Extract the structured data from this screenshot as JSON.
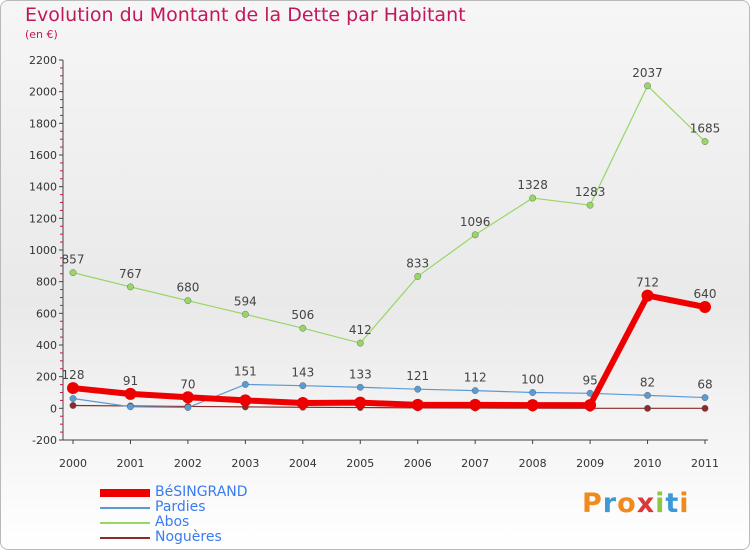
{
  "header": {
    "title": "Evolution du Montant de la Dette par Habitant",
    "subtitle": "(en €)"
  },
  "logo": {
    "text": "Proxiti",
    "colors": [
      "#f08a1c",
      "#3b9ad6",
      "#f08a1c",
      "#d83a3a",
      "#8dc63f",
      "#3b9ad6",
      "#f08a1c"
    ]
  },
  "colors": {
    "title": "#c2185b",
    "legend_text": "#3a7cf0",
    "axis": "#444444",
    "tick_mark": "#c2185b"
  },
  "chart_data": {
    "type": "line",
    "categories": [
      "2000",
      "2001",
      "2002",
      "2003",
      "2004",
      "2005",
      "2006",
      "2007",
      "2008",
      "2009",
      "2010",
      "2011"
    ],
    "y_ticks": [
      "-200",
      "0",
      "200",
      "400",
      "600",
      "800",
      "1000",
      "1200",
      "1400",
      "1600",
      "1800",
      "2000",
      "2200"
    ],
    "ylim": [
      -200,
      2200
    ],
    "grid": false,
    "legend_position": "bottom-left",
    "series": [
      {
        "name": "BéSINGRAND",
        "color": "#ee0000",
        "width": 6,
        "marker": 6,
        "values": [
          128,
          91,
          70,
          50,
          34,
          36,
          22,
          22,
          20,
          20,
          712,
          640
        ],
        "labels": [
          "128",
          "91",
          "70",
          "",
          "",
          "",
          "",
          "",
          "",
          "",
          "712",
          "640"
        ]
      },
      {
        "name": "Pardies",
        "color": "#5b9bd5",
        "width": 1.2,
        "marker": 3.2,
        "values": [
          62,
          10,
          5,
          151,
          143,
          133,
          121,
          112,
          100,
          95,
          82,
          68
        ],
        "labels": [
          "",
          "",
          "",
          "151",
          "143",
          "133",
          "121",
          "112",
          "100",
          "95",
          "82",
          "68"
        ]
      },
      {
        "name": "Abos",
        "color": "#98d667",
        "width": 1.2,
        "marker": 3.2,
        "values": [
          857,
          767,
          680,
          594,
          506,
          412,
          833,
          1096,
          1328,
          1283,
          2037,
          1685
        ],
        "labels": [
          "857",
          "767",
          "680",
          "594",
          "506",
          "412",
          "833",
          "1096",
          "1328",
          "1283",
          "2037",
          "1685"
        ]
      },
      {
        "name": "Noguères",
        "color": "#8b2b2b",
        "width": 1.2,
        "marker": 3.2,
        "values": [
          18,
          15,
          12,
          9,
          7,
          5,
          3,
          2,
          1,
          0,
          0,
          0
        ],
        "labels": [
          "",
          "",
          "",
          "",
          "",
          "",
          "",
          "",
          "",
          "",
          "",
          ""
        ]
      }
    ]
  }
}
